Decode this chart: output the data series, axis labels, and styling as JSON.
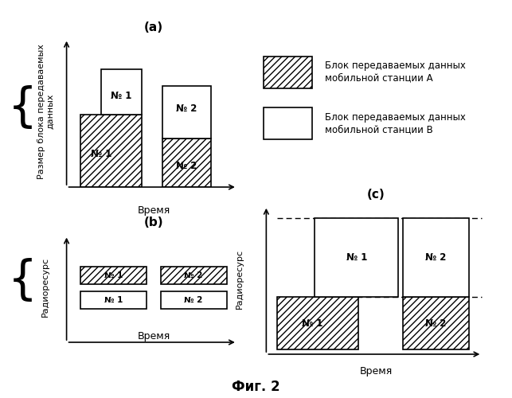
{
  "title_a": "(a)",
  "title_b": "(b)",
  "title_c": "(c)",
  "fig_title": "Фиг. 2",
  "ylabel_a": "Размер блока передаваемых\nданных",
  "xlabel_a": "Время",
  "ylabel_b": "Радиоресурс",
  "xlabel_b": "Время",
  "ylabel_c": "Радиоресурс",
  "xlabel_c": "Время",
  "legend_hatch_label": "Блок передаваемых данных\nмобильной станции А",
  "legend_white_label": "Блок передаваемых данных\nмобильной станции В",
  "bg_color": "#ffffff"
}
